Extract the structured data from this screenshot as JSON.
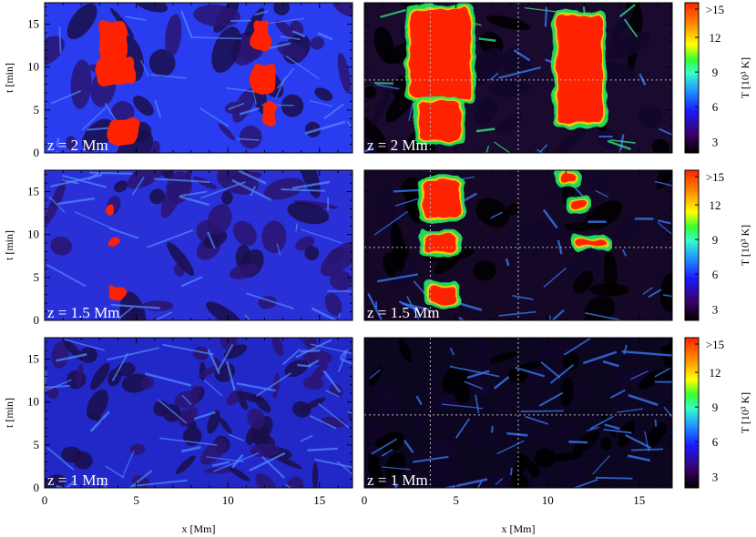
{
  "chart_data": {
    "type": "heatmap",
    "title": "",
    "xlabel": "x [Mm]",
    "ylabel": "t [min]",
    "xlim": [
      0,
      16.8
    ],
    "ylim": [
      0,
      17.5
    ],
    "x_ticks": [
      "0",
      "5",
      "10",
      "15"
    ],
    "y_ticks": [
      "0",
      "5",
      "10",
      "15"
    ],
    "colorbar": {
      "label": "T [10³ K]",
      "ticks": [
        "3",
        "6",
        "9",
        "12",
        ">15"
      ],
      "range": [
        2,
        15
      ],
      "colors": [
        "#000000",
        "#3a0066",
        "#1a1aff",
        "#2299ff",
        "#33ffcc",
        "#33ff33",
        "#ffff00",
        "#ff8800",
        "#ff2200"
      ]
    },
    "rows": [
      {
        "label": "z = 2 Mm",
        "left": {
          "base_color": "#2a3cf0",
          "hot_regions": [
            {
              "x": [
                3.0,
                4.5
              ],
              "t": [
                10.5,
                15.2
              ]
            },
            {
              "x": [
                2.8,
                5.0
              ],
              "t": [
                8.0,
                11.0
              ]
            },
            {
              "x": [
                3.5,
                5.2
              ],
              "t": [
                1.0,
                4.0
              ]
            },
            {
              "x": [
                11.3,
                12.3
              ],
              "t": [
                12.0,
                15.5
              ]
            },
            {
              "x": [
                11.3,
                12.6
              ],
              "t": [
                7.0,
                10.5
              ]
            },
            {
              "x": [
                12.0,
                12.6
              ],
              "t": [
                3.0,
                6.0
              ]
            }
          ]
        },
        "right": {
          "base_color": "#1a0a2e",
          "hot_regions": [
            {
              "x": [
                2.5,
                5.8
              ],
              "t": [
                6.5,
                16.8
              ]
            },
            {
              "x": [
                3.0,
                5.2
              ],
              "t": [
                1.5,
                6.0
              ]
            },
            {
              "x": [
                10.5,
                13.0
              ],
              "t": [
                3.5,
                16.0
              ]
            }
          ]
        }
      },
      {
        "label": "z = 1.5 Mm",
        "left": {
          "base_color": "#2a30d8",
          "hot_regions": [
            {
              "x": [
                3.3,
                3.8
              ],
              "t": [
                12.3,
                13.6
              ]
            },
            {
              "x": [
                3.4,
                4.2
              ],
              "t": [
                8.7,
                9.5
              ]
            },
            {
              "x": [
                3.5,
                4.5
              ],
              "t": [
                2.3,
                3.8
              ]
            }
          ]
        },
        "right": {
          "base_color": "#140826",
          "hot_regions": [
            {
              "x": [
                3.2,
                5.2
              ],
              "t": [
                12.0,
                16.3
              ]
            },
            {
              "x": [
                3.2,
                5.0
              ],
              "t": [
                8.0,
                10.0
              ]
            },
            {
              "x": [
                3.6,
                5.0
              ],
              "t": [
                2.0,
                4.0
              ]
            },
            {
              "x": [
                10.7,
                11.6
              ],
              "t": [
                16.0,
                17.0
              ]
            },
            {
              "x": [
                11.2,
                12.2
              ],
              "t": [
                13.0,
                14.0
              ]
            },
            {
              "x": [
                11.5,
                13.2
              ],
              "t": [
                8.7,
                9.4
              ]
            }
          ]
        }
      },
      {
        "label": "z = 1 Mm",
        "left": {
          "base_color": "#2228c8",
          "hot_regions": []
        },
        "right": {
          "base_color": "#0c0620",
          "hot_regions": []
        }
      }
    ],
    "dotted_guides": {
      "top": {
        "x": [
          3.6,
          8.4
        ],
        "t": 8.5
      },
      "middle": {
        "x": [
          3.6,
          8.4
        ],
        "t": 8.5
      },
      "bottom": {
        "x": [
          3.6,
          8.4
        ],
        "t": 8.5
      }
    },
    "grid": false,
    "legend": "none"
  }
}
